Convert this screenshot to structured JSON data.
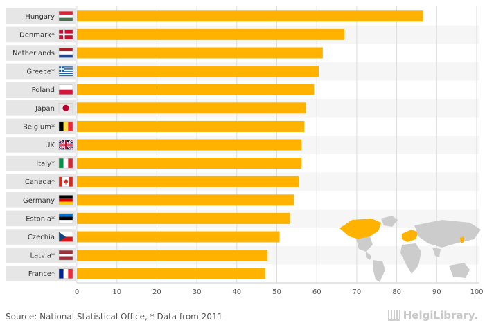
{
  "chart_data": {
    "type": "bar",
    "orientation": "horizontal",
    "categories": [
      "Hungary",
      "Denmark*",
      "Netherlands",
      "Greece*",
      "Poland",
      "Japan",
      "Belgium*",
      "UK",
      "Italy*",
      "Canada*",
      "Germany",
      "Estonia*",
      "Czechia",
      "Latvia*",
      "France*"
    ],
    "values": [
      86.6,
      66.9,
      61.5,
      60.5,
      59.3,
      57.2,
      56.9,
      56.2,
      56.2,
      55.5,
      54.3,
      53.3,
      50.7,
      47.7,
      47.1
    ],
    "xlim": [
      0,
      100
    ],
    "xticks": [
      "0",
      "10",
      "20",
      "30",
      "40",
      "50",
      "60",
      "70",
      "80",
      "90",
      "100"
    ],
    "bar_color": "#ffb300",
    "title": "",
    "xlabel": "",
    "ylabel": ""
  },
  "flag_icons": [
    "hungary-flag-icon",
    "denmark-flag-icon",
    "netherlands-flag-icon",
    "greece-flag-icon",
    "poland-flag-icon",
    "japan-flag-icon",
    "belgium-flag-icon",
    "uk-flag-icon",
    "italy-flag-icon",
    "canada-flag-icon",
    "germany-flag-icon",
    "estonia-flag-icon",
    "czechia-flag-icon",
    "latvia-flag-icon",
    "france-flag-icon"
  ],
  "footer": {
    "source": "Source: National Statistical Office, * Data from 2011",
    "logo": "HelgiLibrary."
  },
  "colors": {
    "label_band": "#e6e6e6",
    "grid": "#dddddd",
    "map_land": "#cccccc",
    "map_highlight": "#ffb300"
  }
}
